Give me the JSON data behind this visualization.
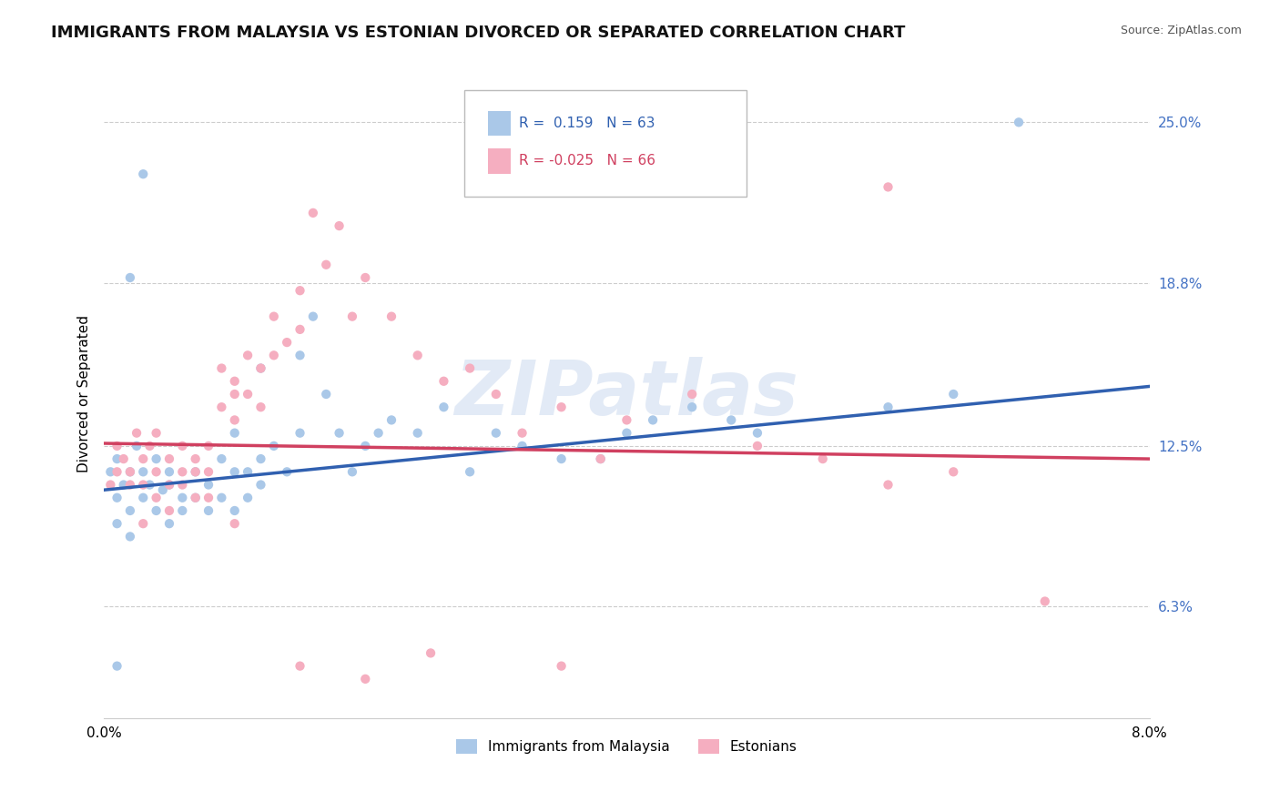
{
  "title": "IMMIGRANTS FROM MALAYSIA VS ESTONIAN DIVORCED OR SEPARATED CORRELATION CHART",
  "source": "Source: ZipAtlas.com",
  "ylabel_label": "Divorced or Separated",
  "legend_label1": "Immigrants from Malaysia",
  "legend_label2": "Estonians",
  "r1": 0.159,
  "n1": 63,
  "r2": -0.025,
  "n2": 66,
  "xmin": 0.0,
  "xmax": 0.08,
  "ymin": 0.02,
  "ymax": 0.27,
  "yticks": [
    0.063,
    0.125,
    0.188,
    0.25
  ],
  "ytick_labels": [
    "6.3%",
    "12.5%",
    "18.8%",
    "25.0%"
  ],
  "xticks": [
    0.0,
    0.01,
    0.02,
    0.03,
    0.04,
    0.05,
    0.06,
    0.07,
    0.08
  ],
  "xtick_labels": [
    "0.0%",
    "",
    "",
    "",
    "",
    "",
    "",
    "",
    "8.0%"
  ],
  "color1": "#aac8e8",
  "color2": "#f5aec0",
  "line_color1": "#3060b0",
  "line_color2": "#d04060",
  "tick_color": "#4472c4",
  "watermark": "ZIPatlas",
  "title_fontsize": 13,
  "axis_label_fontsize": 11,
  "tick_fontsize": 11,
  "blue_line_x0": 0.0,
  "blue_line_y0": 0.108,
  "blue_line_x1": 0.08,
  "blue_line_y1": 0.148,
  "pink_line_x0": 0.0,
  "pink_line_y0": 0.126,
  "pink_line_x1": 0.08,
  "pink_line_y1": 0.12,
  "blue_scatter_x": [
    0.0005,
    0.001,
    0.001,
    0.001,
    0.0015,
    0.002,
    0.002,
    0.002,
    0.0025,
    0.003,
    0.003,
    0.0035,
    0.004,
    0.004,
    0.0045,
    0.005,
    0.005,
    0.005,
    0.006,
    0.006,
    0.007,
    0.007,
    0.008,
    0.008,
    0.009,
    0.009,
    0.01,
    0.01,
    0.01,
    0.011,
    0.011,
    0.012,
    0.012,
    0.013,
    0.014,
    0.015,
    0.015,
    0.016,
    0.017,
    0.018,
    0.019,
    0.02,
    0.021,
    0.022,
    0.024,
    0.026,
    0.028,
    0.03,
    0.032,
    0.035,
    0.038,
    0.04,
    0.042,
    0.045,
    0.048,
    0.05,
    0.06,
    0.065,
    0.012,
    0.003,
    0.001,
    0.002,
    0.07
  ],
  "blue_scatter_y": [
    0.115,
    0.105,
    0.12,
    0.095,
    0.11,
    0.1,
    0.115,
    0.09,
    0.125,
    0.105,
    0.115,
    0.11,
    0.1,
    0.12,
    0.108,
    0.115,
    0.095,
    0.11,
    0.105,
    0.1,
    0.105,
    0.115,
    0.11,
    0.1,
    0.105,
    0.12,
    0.115,
    0.13,
    0.1,
    0.115,
    0.105,
    0.12,
    0.11,
    0.125,
    0.115,
    0.16,
    0.13,
    0.175,
    0.145,
    0.13,
    0.115,
    0.125,
    0.13,
    0.135,
    0.13,
    0.14,
    0.115,
    0.13,
    0.125,
    0.12,
    0.12,
    0.13,
    0.135,
    0.14,
    0.135,
    0.13,
    0.14,
    0.145,
    0.155,
    0.23,
    0.04,
    0.19,
    0.25
  ],
  "pink_scatter_x": [
    0.0005,
    0.001,
    0.001,
    0.0015,
    0.002,
    0.002,
    0.0025,
    0.003,
    0.003,
    0.0035,
    0.004,
    0.004,
    0.005,
    0.005,
    0.006,
    0.006,
    0.007,
    0.007,
    0.008,
    0.008,
    0.009,
    0.009,
    0.01,
    0.01,
    0.01,
    0.011,
    0.011,
    0.012,
    0.012,
    0.013,
    0.013,
    0.014,
    0.015,
    0.015,
    0.016,
    0.017,
    0.018,
    0.019,
    0.02,
    0.022,
    0.024,
    0.026,
    0.028,
    0.03,
    0.032,
    0.035,
    0.038,
    0.04,
    0.045,
    0.05,
    0.055,
    0.06,
    0.065,
    0.003,
    0.004,
    0.005,
    0.006,
    0.007,
    0.008,
    0.01,
    0.015,
    0.02,
    0.025,
    0.035,
    0.06,
    0.072
  ],
  "pink_scatter_y": [
    0.11,
    0.115,
    0.125,
    0.12,
    0.115,
    0.11,
    0.13,
    0.12,
    0.11,
    0.125,
    0.115,
    0.13,
    0.11,
    0.12,
    0.115,
    0.125,
    0.105,
    0.12,
    0.115,
    0.125,
    0.14,
    0.155,
    0.15,
    0.145,
    0.135,
    0.16,
    0.145,
    0.155,
    0.14,
    0.16,
    0.175,
    0.165,
    0.17,
    0.185,
    0.215,
    0.195,
    0.21,
    0.175,
    0.19,
    0.175,
    0.16,
    0.15,
    0.155,
    0.145,
    0.13,
    0.14,
    0.12,
    0.135,
    0.145,
    0.125,
    0.12,
    0.11,
    0.115,
    0.095,
    0.105,
    0.1,
    0.11,
    0.115,
    0.105,
    0.095,
    0.04,
    0.035,
    0.045,
    0.04,
    0.225,
    0.065
  ]
}
